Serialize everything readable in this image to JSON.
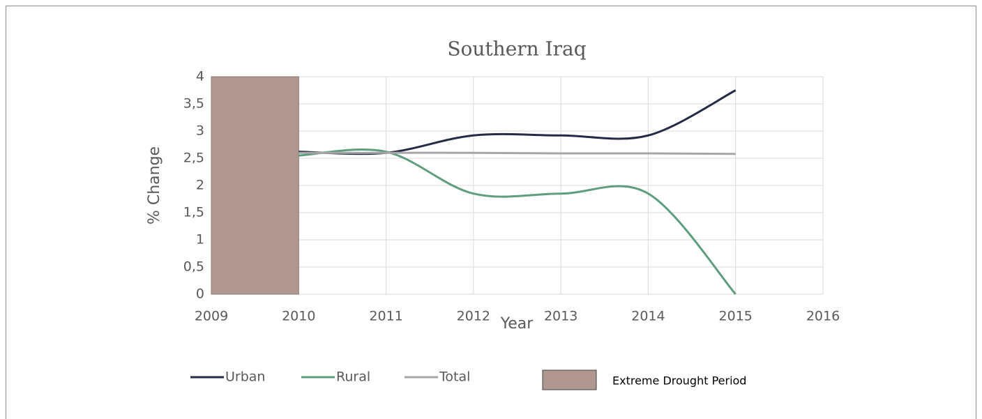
{
  "chart_data": {
    "type": "line",
    "title": "Southern Iraq",
    "x_label": "Year",
    "y_label": "% Change",
    "xlim": [
      2009,
      2016
    ],
    "xticks": [
      2009,
      2010,
      2011,
      2012,
      2013,
      2014,
      2015,
      2016
    ],
    "ylim": [
      0,
      4
    ],
    "yticks": [
      0,
      {
        "value": 0.5,
        "label": "0,5"
      },
      1,
      {
        "value": 1.5,
        "label": "1,5"
      },
      2,
      {
        "value": 2.5,
        "label": "2,5"
      },
      3,
      {
        "value": 3.5,
        "label": "3,5"
      },
      4
    ],
    "grid": true,
    "smooth": true,
    "legend": "bottom",
    "x": [
      2010,
      2011,
      2012,
      2013,
      2014,
      2015
    ],
    "series": [
      {
        "name": "Urban",
        "color": "#232b45",
        "values": [
          2.62,
          2.6,
          2.92,
          2.92,
          2.92,
          3.75
        ]
      },
      {
        "name": "Rural",
        "color": "#5e9e7e",
        "values": [
          2.55,
          2.62,
          1.85,
          1.85,
          1.85,
          0
        ]
      },
      {
        "name": "Total",
        "color": "#a6a6a6",
        "values": [
          2.6,
          2.6,
          2.6,
          2.59,
          2.59,
          2.58
        ]
      }
    ],
    "shaded_region": {
      "label": "Extreme Drought Period",
      "x": [
        2009,
        2010
      ],
      "color": "#b09890"
    }
  }
}
